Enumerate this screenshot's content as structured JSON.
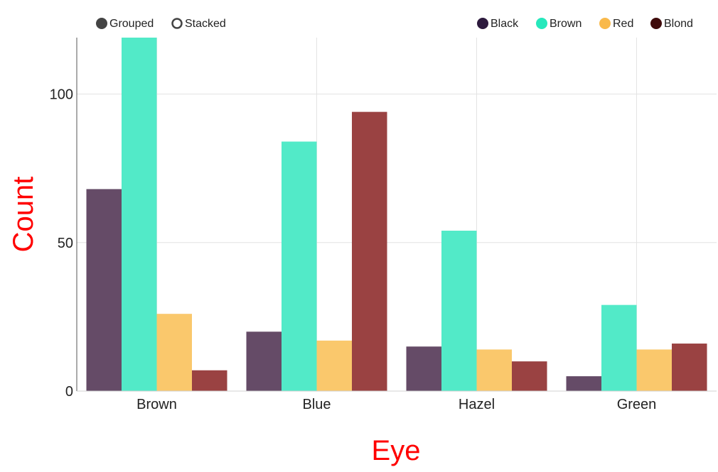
{
  "controls": {
    "mode_options": [
      {
        "label": "Grouped",
        "selected": true
      },
      {
        "label": "Stacked",
        "selected": false
      }
    ]
  },
  "chart_data": {
    "type": "bar",
    "mode": "grouped",
    "categories": [
      "Brown",
      "Blue",
      "Hazel",
      "Green"
    ],
    "series": [
      {
        "name": "Black",
        "color": "#2d1a3d",
        "values": [
          68,
          20,
          15,
          5
        ]
      },
      {
        "name": "Brown",
        "color": "#26e8bc",
        "values": [
          119,
          84,
          54,
          29
        ]
      },
      {
        "name": "Red",
        "color": "#f9b94a",
        "values": [
          26,
          17,
          14,
          14
        ]
      },
      {
        "name": "Blond",
        "color": "#3f0b0b",
        "values": [
          7,
          94,
          10,
          16
        ]
      }
    ],
    "bar_colors": [
      "#654b67",
      "#52eac8",
      "#fac86c",
      "#9a4242"
    ],
    "xlabel": "Eye",
    "ylabel": "Count",
    "label_color": "#ff0000",
    "ylim": [
      0,
      119
    ],
    "yticks": [
      0,
      50,
      100
    ],
    "grid": true,
    "legend": "top-right"
  }
}
